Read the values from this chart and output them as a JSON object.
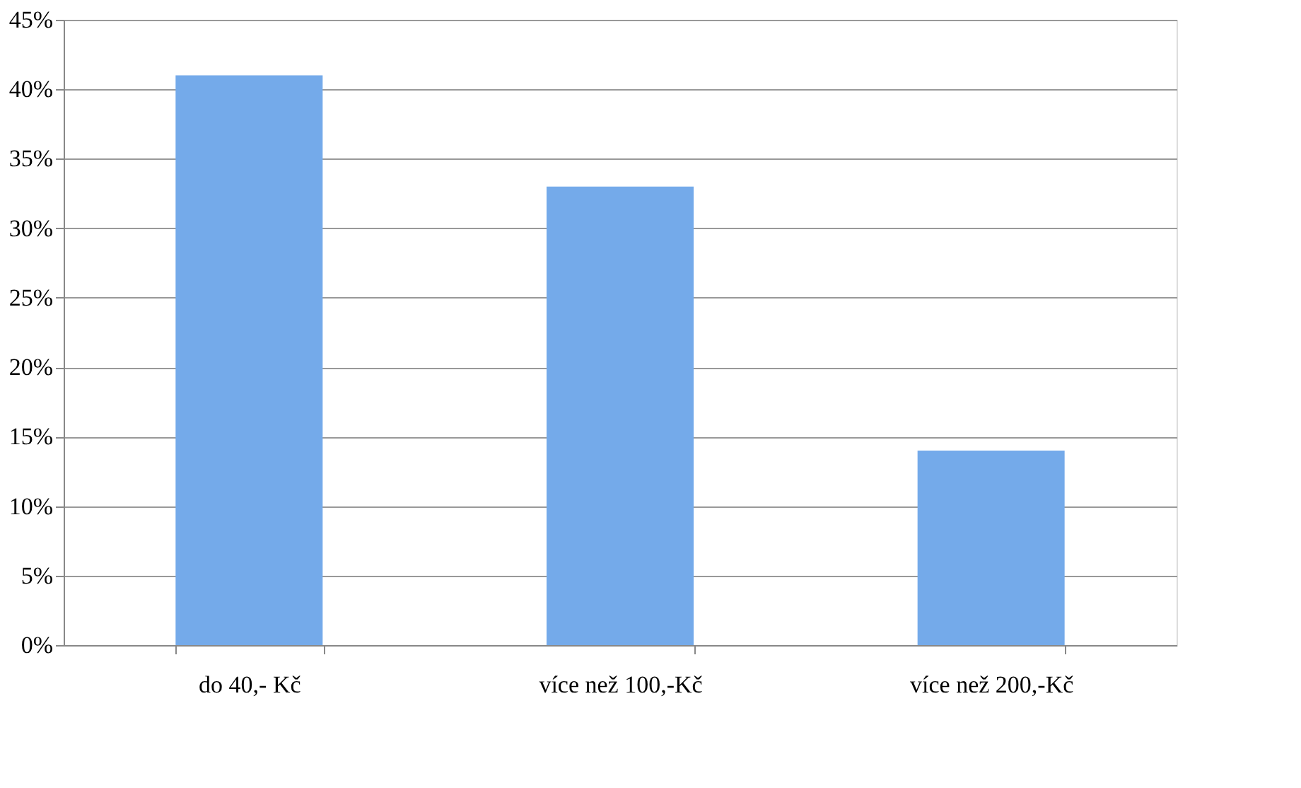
{
  "chart_data": {
    "type": "bar",
    "categories": [
      "do 40,- Kč",
      "více než 100,-Kč",
      "více než 200,-Kč"
    ],
    "values": [
      41,
      33,
      14
    ],
    "color": "#74aaea",
    "ylim": [
      0,
      45
    ],
    "yticks": [
      {
        "value": 0,
        "label": "0%"
      },
      {
        "value": 5,
        "label": "5%"
      },
      {
        "value": 10,
        "label": "10%"
      },
      {
        "value": 15,
        "label": "15%"
      },
      {
        "value": 20,
        "label": "20%"
      },
      {
        "value": 25,
        "label": "25%"
      },
      {
        "value": 30,
        "label": "30%"
      },
      {
        "value": 35,
        "label": "35%"
      },
      {
        "value": 40,
        "label": "40%"
      },
      {
        "value": 45,
        "label": "45%"
      }
    ],
    "grid": "y"
  }
}
